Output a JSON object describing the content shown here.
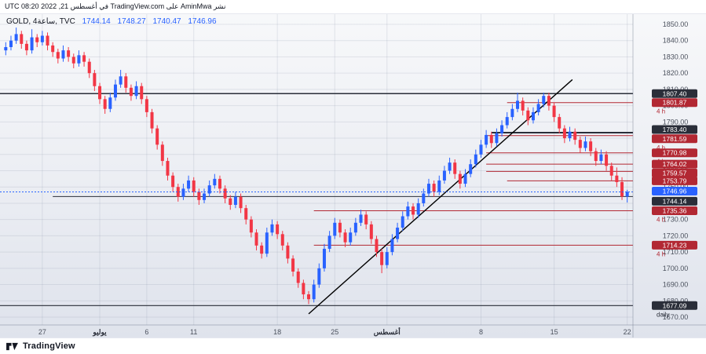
{
  "attribution": {
    "text": "نشر AminMwa على TradingView.com في أغسطس 21, 2022 08:20 UTC"
  },
  "legend": {
    "symbol": "GOLD, 4ساعة, TVC",
    "ohlc": [
      "1744.14",
      "1748.27",
      "1740.47",
      "1746.96"
    ]
  },
  "footer": {
    "brand": "TradingView"
  },
  "colors": {
    "up": "#2962ff",
    "down": "#f23645",
    "level_red": "#b22833",
    "level_dark": "#2a2e39",
    "current": "#2962ff",
    "axis_text": "#4c525e",
    "grid": "rgba(130,140,160,0.18)",
    "separator": "rgba(100,110,130,0.4)",
    "trendline": "#000000"
  },
  "chart_data": {
    "type": "candlestick",
    "symbol": "GOLD",
    "interval": "4h",
    "exchange": "TVC",
    "y_axis": {
      "max": 1850,
      "min": 1670,
      "step": 10
    },
    "x_labels": [
      {
        "label": "27",
        "index": 7
      },
      {
        "label": "يوليو",
        "index": 18,
        "month": true
      },
      {
        "label": "6",
        "index": 27
      },
      {
        "label": "11",
        "index": 36
      },
      {
        "label": "18",
        "index": 52
      },
      {
        "label": "25",
        "index": 63
      },
      {
        "label": "أغسطس",
        "index": 73,
        "month": true
      },
      {
        "label": "8",
        "index": 91
      },
      {
        "label": "15",
        "index": 105
      },
      {
        "label": "22",
        "index": 119
      }
    ],
    "levels": [
      {
        "price": 1807.4,
        "timeframe": "daily",
        "style": "dark",
        "from_index": 0,
        "weight": 1.5
      },
      {
        "price": 1801.87,
        "timeframe": "4 h",
        "style": "red",
        "from_index": 96
      },
      {
        "price": 1783.4,
        "timeframe": "daily",
        "style": "dark",
        "from_index": 93,
        "weight": 2,
        "badge_dy": -4
      },
      {
        "price": 1781.59,
        "timeframe": "4 h",
        "style": "red",
        "from_index": 92,
        "badge_dy": 4
      },
      {
        "price": 1770.98,
        "timeframe": "4 h",
        "style": "red",
        "from_index": 92
      },
      {
        "price": 1764.02,
        "timeframe": "4 h",
        "style": "red",
        "from_index": 92
      },
      {
        "price": 1759.57,
        "timeframe": "4 h",
        "style": "red",
        "from_index": 92,
        "badge_dy": 2
      },
      {
        "price": 1753.79,
        "timeframe": "4 h",
        "style": "red",
        "from_index": 96
      },
      {
        "price": 1744.14,
        "timeframe": "daily",
        "style": "dark",
        "from_index": 9,
        "badge_dy": 6
      },
      {
        "price": 1735.36,
        "timeframe": "4 h",
        "style": "red",
        "from_index": 59
      },
      {
        "price": 1714.23,
        "timeframe": "4 h",
        "style": "red",
        "from_index": 59
      },
      {
        "price": 1677.09,
        "timeframe": "daily",
        "style": "dark",
        "from_index": 0,
        "weight": 1.2
      }
    ],
    "current_price": {
      "value": 1746.96
    },
    "trendline": {
      "from": {
        "index": 58,
        "price": 1672
      },
      "to": {
        "index": 108.5,
        "price": 1816
      }
    },
    "candles": [
      [
        1834,
        1839,
        1831,
        1836
      ],
      [
        1836,
        1843,
        1834,
        1840
      ],
      [
        1840,
        1848,
        1838,
        1844
      ],
      [
        1844,
        1846,
        1835,
        1838
      ],
      [
        1838,
        1840,
        1831,
        1834
      ],
      [
        1834,
        1847,
        1832,
        1842
      ],
      [
        1842,
        1844,
        1836,
        1839
      ],
      [
        1839,
        1846,
        1837,
        1843
      ],
      [
        1843,
        1845,
        1834,
        1837
      ],
      [
        1837,
        1839,
        1830,
        1833
      ],
      [
        1833,
        1835,
        1826,
        1829
      ],
      [
        1829,
        1837,
        1827,
        1834
      ],
      [
        1834,
        1836,
        1827,
        1830
      ],
      [
        1830,
        1832,
        1823,
        1826
      ],
      [
        1826,
        1834,
        1824,
        1831
      ],
      [
        1831,
        1833,
        1824,
        1827
      ],
      [
        1827,
        1829,
        1817,
        1820
      ],
      [
        1820,
        1822,
        1809,
        1812
      ],
      [
        1812,
        1814,
        1801,
        1804
      ],
      [
        1804,
        1806,
        1795,
        1798
      ],
      [
        1798,
        1808,
        1796,
        1805
      ],
      [
        1805,
        1816,
        1803,
        1813
      ],
      [
        1813,
        1822,
        1811,
        1818
      ],
      [
        1818,
        1820,
        1808,
        1811
      ],
      [
        1811,
        1813,
        1803,
        1806
      ],
      [
        1806,
        1815,
        1804,
        1812
      ],
      [
        1812,
        1814,
        1801,
        1804
      ],
      [
        1804,
        1806,
        1793,
        1796
      ],
      [
        1796,
        1798,
        1783,
        1786
      ],
      [
        1786,
        1788,
        1773,
        1776
      ],
      [
        1776,
        1778,
        1763,
        1766
      ],
      [
        1766,
        1768,
        1754,
        1757
      ],
      [
        1757,
        1759,
        1747,
        1750
      ],
      [
        1750,
        1752,
        1741,
        1744
      ],
      [
        1744,
        1752,
        1742,
        1749
      ],
      [
        1749,
        1757,
        1747,
        1754
      ],
      [
        1754,
        1756,
        1744,
        1747
      ],
      [
        1747,
        1749,
        1739,
        1742
      ],
      [
        1742,
        1749,
        1740,
        1746
      ],
      [
        1746,
        1754,
        1744,
        1751
      ],
      [
        1751,
        1758,
        1749,
        1755
      ],
      [
        1755,
        1757,
        1746,
        1749
      ],
      [
        1749,
        1751,
        1740,
        1743
      ],
      [
        1743,
        1745,
        1736,
        1739
      ],
      [
        1739,
        1747,
        1737,
        1744
      ],
      [
        1744,
        1746,
        1734,
        1737
      ],
      [
        1737,
        1739,
        1727,
        1730
      ],
      [
        1730,
        1732,
        1719,
        1722
      ],
      [
        1722,
        1724,
        1711,
        1714
      ],
      [
        1714,
        1716,
        1706,
        1709
      ],
      [
        1709,
        1725,
        1707,
        1722
      ],
      [
        1722,
        1730,
        1720,
        1727
      ],
      [
        1727,
        1729,
        1718,
        1721
      ],
      [
        1721,
        1723,
        1711,
        1714
      ],
      [
        1714,
        1716,
        1703,
        1706
      ],
      [
        1706,
        1708,
        1695,
        1698
      ],
      [
        1698,
        1700,
        1688,
        1691
      ],
      [
        1691,
        1693,
        1681,
        1684
      ],
      [
        1684,
        1686,
        1678,
        1681
      ],
      [
        1681,
        1693,
        1679,
        1690
      ],
      [
        1690,
        1703,
        1688,
        1700
      ],
      [
        1700,
        1715,
        1698,
        1712
      ],
      [
        1712,
        1723,
        1710,
        1720
      ],
      [
        1720,
        1731,
        1718,
        1728
      ],
      [
        1728,
        1730,
        1719,
        1722
      ],
      [
        1722,
        1724,
        1713,
        1716
      ],
      [
        1716,
        1725,
        1714,
        1722
      ],
      [
        1722,
        1731,
        1720,
        1728
      ],
      [
        1728,
        1736,
        1726,
        1733
      ],
      [
        1733,
        1735,
        1724,
        1727
      ],
      [
        1727,
        1729,
        1715,
        1718
      ],
      [
        1718,
        1720,
        1707,
        1710
      ],
      [
        1710,
        1712,
        1697,
        1702
      ],
      [
        1702,
        1713,
        1700,
        1710
      ],
      [
        1710,
        1721,
        1708,
        1718
      ],
      [
        1718,
        1728,
        1716,
        1725
      ],
      [
        1725,
        1735,
        1723,
        1732
      ],
      [
        1732,
        1741,
        1730,
        1738
      ],
      [
        1738,
        1740,
        1730,
        1733
      ],
      [
        1733,
        1743,
        1731,
        1740
      ],
      [
        1740,
        1749,
        1738,
        1746
      ],
      [
        1746,
        1755,
        1744,
        1752
      ],
      [
        1752,
        1754,
        1744,
        1747
      ],
      [
        1747,
        1757,
        1745,
        1754
      ],
      [
        1754,
        1763,
        1752,
        1760
      ],
      [
        1760,
        1768,
        1758,
        1765
      ],
      [
        1765,
        1767,
        1755,
        1758
      ],
      [
        1758,
        1760,
        1749,
        1752
      ],
      [
        1752,
        1761,
        1750,
        1758
      ],
      [
        1758,
        1767,
        1756,
        1764
      ],
      [
        1764,
        1773,
        1762,
        1770
      ],
      [
        1770,
        1779,
        1768,
        1776
      ],
      [
        1776,
        1785,
        1774,
        1782
      ],
      [
        1782,
        1784,
        1774,
        1777
      ],
      [
        1777,
        1786,
        1775,
        1783
      ],
      [
        1783,
        1791,
        1781,
        1788
      ],
      [
        1788,
        1796,
        1786,
        1793
      ],
      [
        1793,
        1801,
        1791,
        1798
      ],
      [
        1798,
        1808,
        1796,
        1803
      ],
      [
        1803,
        1805,
        1794,
        1797
      ],
      [
        1797,
        1799,
        1788,
        1791
      ],
      [
        1791,
        1799,
        1789,
        1796
      ],
      [
        1796,
        1804,
        1794,
        1801
      ],
      [
        1801,
        1808,
        1799,
        1806
      ],
      [
        1806,
        1808,
        1797,
        1800
      ],
      [
        1800,
        1802,
        1790,
        1793
      ],
      [
        1793,
        1795,
        1783,
        1786
      ],
      [
        1786,
        1788,
        1777,
        1780
      ],
      [
        1780,
        1787,
        1778,
        1784
      ],
      [
        1784,
        1786,
        1776,
        1779
      ],
      [
        1779,
        1781,
        1771,
        1774
      ],
      [
        1774,
        1781,
        1772,
        1778
      ],
      [
        1778,
        1780,
        1769,
        1772
      ],
      [
        1772,
        1774,
        1763,
        1766
      ],
      [
        1766,
        1773,
        1764,
        1770
      ],
      [
        1770,
        1772,
        1760,
        1763
      ],
      [
        1763,
        1765,
        1754,
        1757
      ],
      [
        1757,
        1762,
        1750,
        1753
      ],
      [
        1753,
        1756,
        1742,
        1744.14
      ],
      [
        1744.14,
        1748.27,
        1740.47,
        1746.96
      ]
    ]
  }
}
